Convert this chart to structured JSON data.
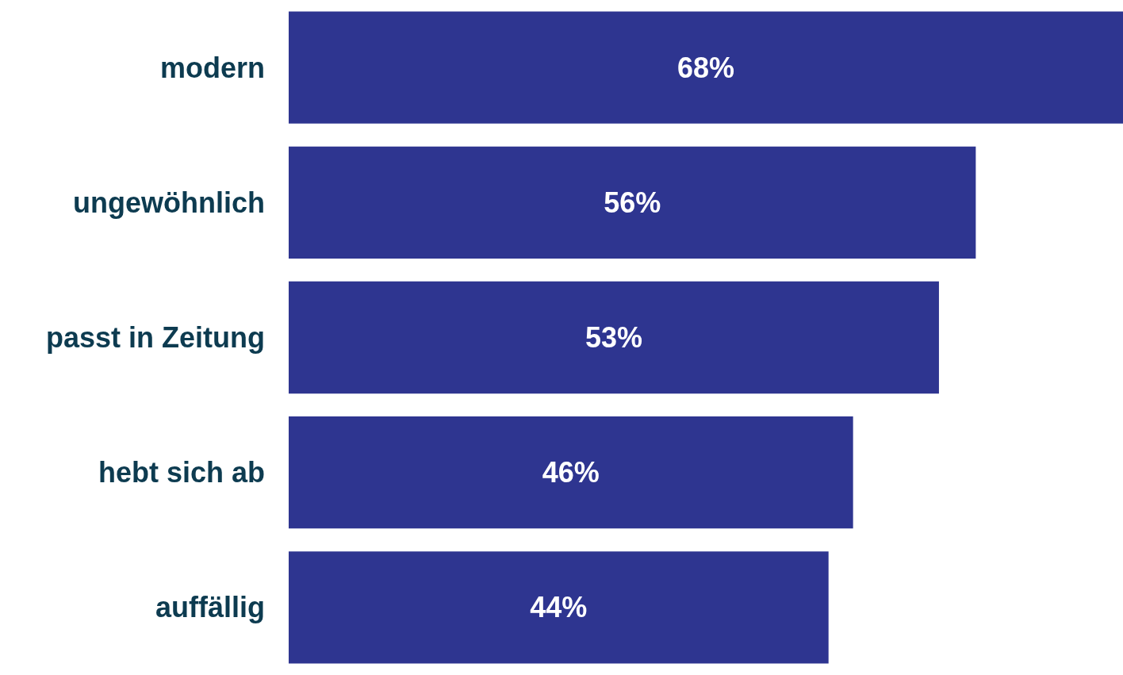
{
  "chart_data": {
    "type": "bar",
    "orientation": "horizontal",
    "categories": [
      "modern",
      "ungewöhnlich",
      "passt in Zeitung",
      "hebt sich ab",
      "auffällig"
    ],
    "values": [
      68,
      56,
      53,
      46,
      44
    ],
    "value_labels": [
      "68%",
      "56%",
      "53%",
      "46%",
      "44%"
    ],
    "color": "#2e3590",
    "xlim": [
      0,
      68
    ],
    "tick_labels": "y",
    "grid": false
  }
}
